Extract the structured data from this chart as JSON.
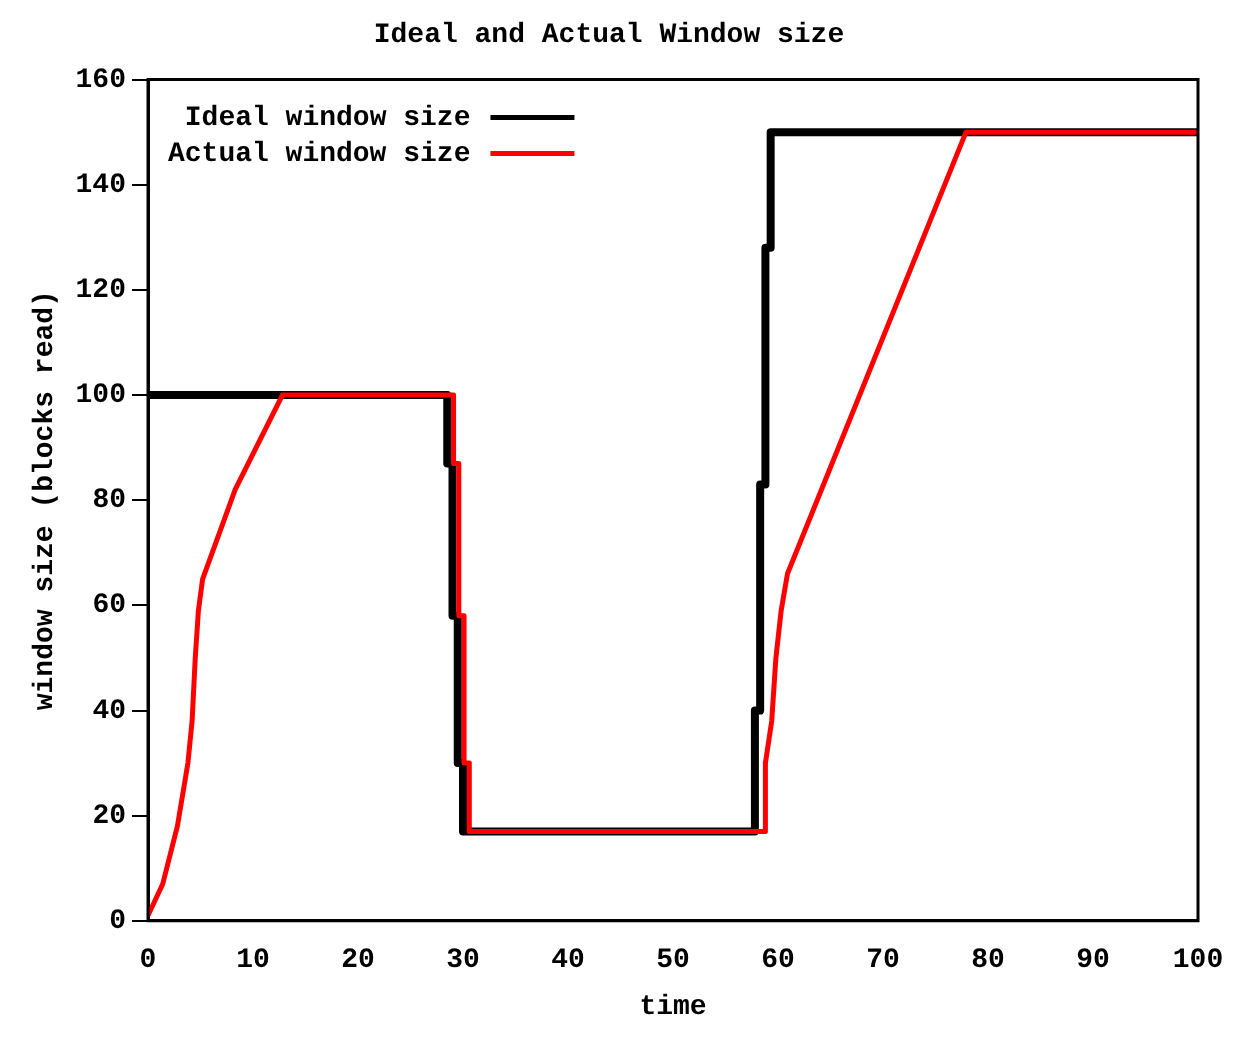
{
  "chart_data": {
    "type": "line",
    "title": "Ideal and Actual Window size",
    "xlabel": "time",
    "ylabel": "window size (blocks read)",
    "xlim": [
      0,
      100
    ],
    "xticks": [
      0,
      10,
      20,
      30,
      40,
      50,
      60,
      70,
      80,
      90,
      100
    ],
    "ylim": [
      0,
      160
    ],
    "yticks": [
      0,
      20,
      40,
      60,
      80,
      100,
      120,
      140,
      160
    ],
    "grid": false,
    "legend": "top left",
    "marker": "none",
    "line_style": "solid",
    "series": [
      {
        "name": "Ideal window size",
        "color": "#000000",
        "x": [
          0,
          28.5,
          28.5,
          29,
          29,
          29.5,
          29.5,
          30,
          30,
          57.8,
          57.8,
          58.3,
          58.3,
          58.8,
          58.8,
          59.3,
          59.3,
          100
        ],
        "values": [
          100,
          100,
          87,
          87,
          58,
          58,
          30,
          30,
          17,
          17,
          40,
          40,
          83,
          83,
          128,
          128,
          150,
          150
        ]
      },
      {
        "name": "Actual window size",
        "color": "#ff0000",
        "x": [
          0,
          1.4,
          2.8,
          3.8,
          4.2,
          4.5,
          4.8,
          5.2,
          8.3,
          12.8,
          29.1,
          29.1,
          29.6,
          29.6,
          30.1,
          30.1,
          30.6,
          30.6,
          58.8,
          58.8,
          59.4,
          59.8,
          60.3,
          60.9,
          77.9,
          100
        ],
        "values": [
          1,
          7,
          18,
          30,
          38,
          50,
          59,
          65,
          82,
          100,
          100,
          87,
          87,
          58,
          58,
          30,
          30,
          17,
          17,
          30,
          38,
          50,
          59,
          66,
          150,
          150
        ]
      }
    ]
  }
}
